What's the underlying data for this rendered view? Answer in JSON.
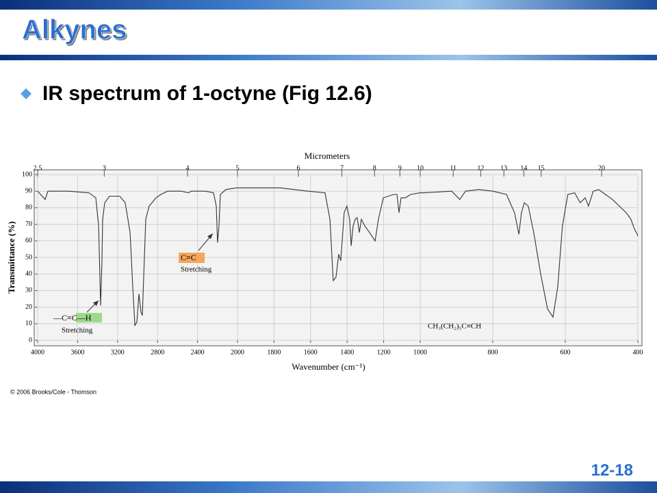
{
  "slide": {
    "title": "Alkynes",
    "bullet": "IR spectrum of 1-octyne (Fig 12.6)",
    "credit": "© 2006 Brooks/Cole - Thomson",
    "page": "12-18"
  },
  "chart_data": {
    "type": "line",
    "x_label": "Wavenumber (cm⁻¹)",
    "y_label": "Transmittance (%)",
    "x2_label": "Micrometers",
    "x": [
      4000,
      3925,
      3897,
      3692,
      3486,
      3418,
      3390,
      3370,
      3356,
      3349,
      3329,
      3281,
      3178,
      3123,
      3075,
      3048,
      3027,
      3007,
      2986,
      2966,
      2952,
      2938,
      2918,
      2884,
      2856,
      2815,
      2767,
      2699,
      2562,
      2493,
      2459,
      2322,
      2240,
      2212,
      2199,
      2185,
      2171,
      2116,
      2014,
      1876,
      1764,
      1614,
      1521,
      1494,
      1476,
      1461,
      1446,
      1435,
      1416,
      1401,
      1386,
      1378,
      1367,
      1356,
      1345,
      1333,
      1322,
      1303,
      1277,
      1247,
      1229,
      1202,
      1146,
      1127,
      1116,
      1105,
      1082,
      1052,
      1000,
      989,
      913,
      891,
      875,
      838,
      800,
      762,
      740,
      728,
      721,
      713,
      702,
      687,
      668,
      649,
      634,
      621,
      608,
      593,
      574,
      559,
      545,
      536,
      523,
      508,
      489,
      470,
      451,
      432,
      419,
      409,
      404,
      400
    ],
    "values": [
      90,
      85,
      90,
      90,
      89,
      86,
      69,
      21,
      48,
      73,
      83,
      87,
      87,
      83,
      65,
      32,
      9,
      11,
      28,
      17,
      15,
      40,
      73,
      81,
      83,
      86,
      88,
      90,
      90,
      89,
      90,
      90,
      89,
      81,
      59,
      69,
      88,
      91,
      92,
      92,
      92,
      90,
      89,
      73,
      36,
      38,
      52,
      48,
      77,
      81,
      73,
      57,
      69,
      73,
      74,
      65,
      73,
      69,
      65,
      60,
      73,
      86,
      88,
      88,
      77,
      86,
      86,
      88,
      89,
      89,
      90,
      85,
      90,
      91,
      90,
      88,
      77,
      64,
      77,
      83,
      81,
      65,
      40,
      19,
      14,
      32,
      69,
      88,
      89,
      83,
      86,
      81,
      90,
      91,
      88,
      85,
      81,
      77,
      73,
      67,
      65,
      63
    ],
    "color": "#333333",
    "xlim": [
      4000,
      400
    ],
    "x_scale_breaks": [
      2000,
      1000
    ],
    "xticks": [
      4000,
      3600,
      3200,
      2800,
      2400,
      2000,
      1800,
      1600,
      1400,
      1200,
      1000,
      800,
      600,
      400
    ],
    "x2ticks": [
      2.5,
      3,
      4,
      5,
      6,
      7,
      8,
      9,
      10,
      11,
      12,
      13,
      14,
      15,
      20
    ],
    "ylim": [
      0,
      100
    ],
    "yticks": [
      0,
      10,
      20,
      30,
      40,
      50,
      60,
      70,
      80,
      90,
      100
    ],
    "grid": true,
    "annotations": [
      "—C≡C—H",
      "Stretching",
      "C≡C",
      "Stretching",
      "CH₃(CH₂)₅C≡CH"
    ]
  }
}
